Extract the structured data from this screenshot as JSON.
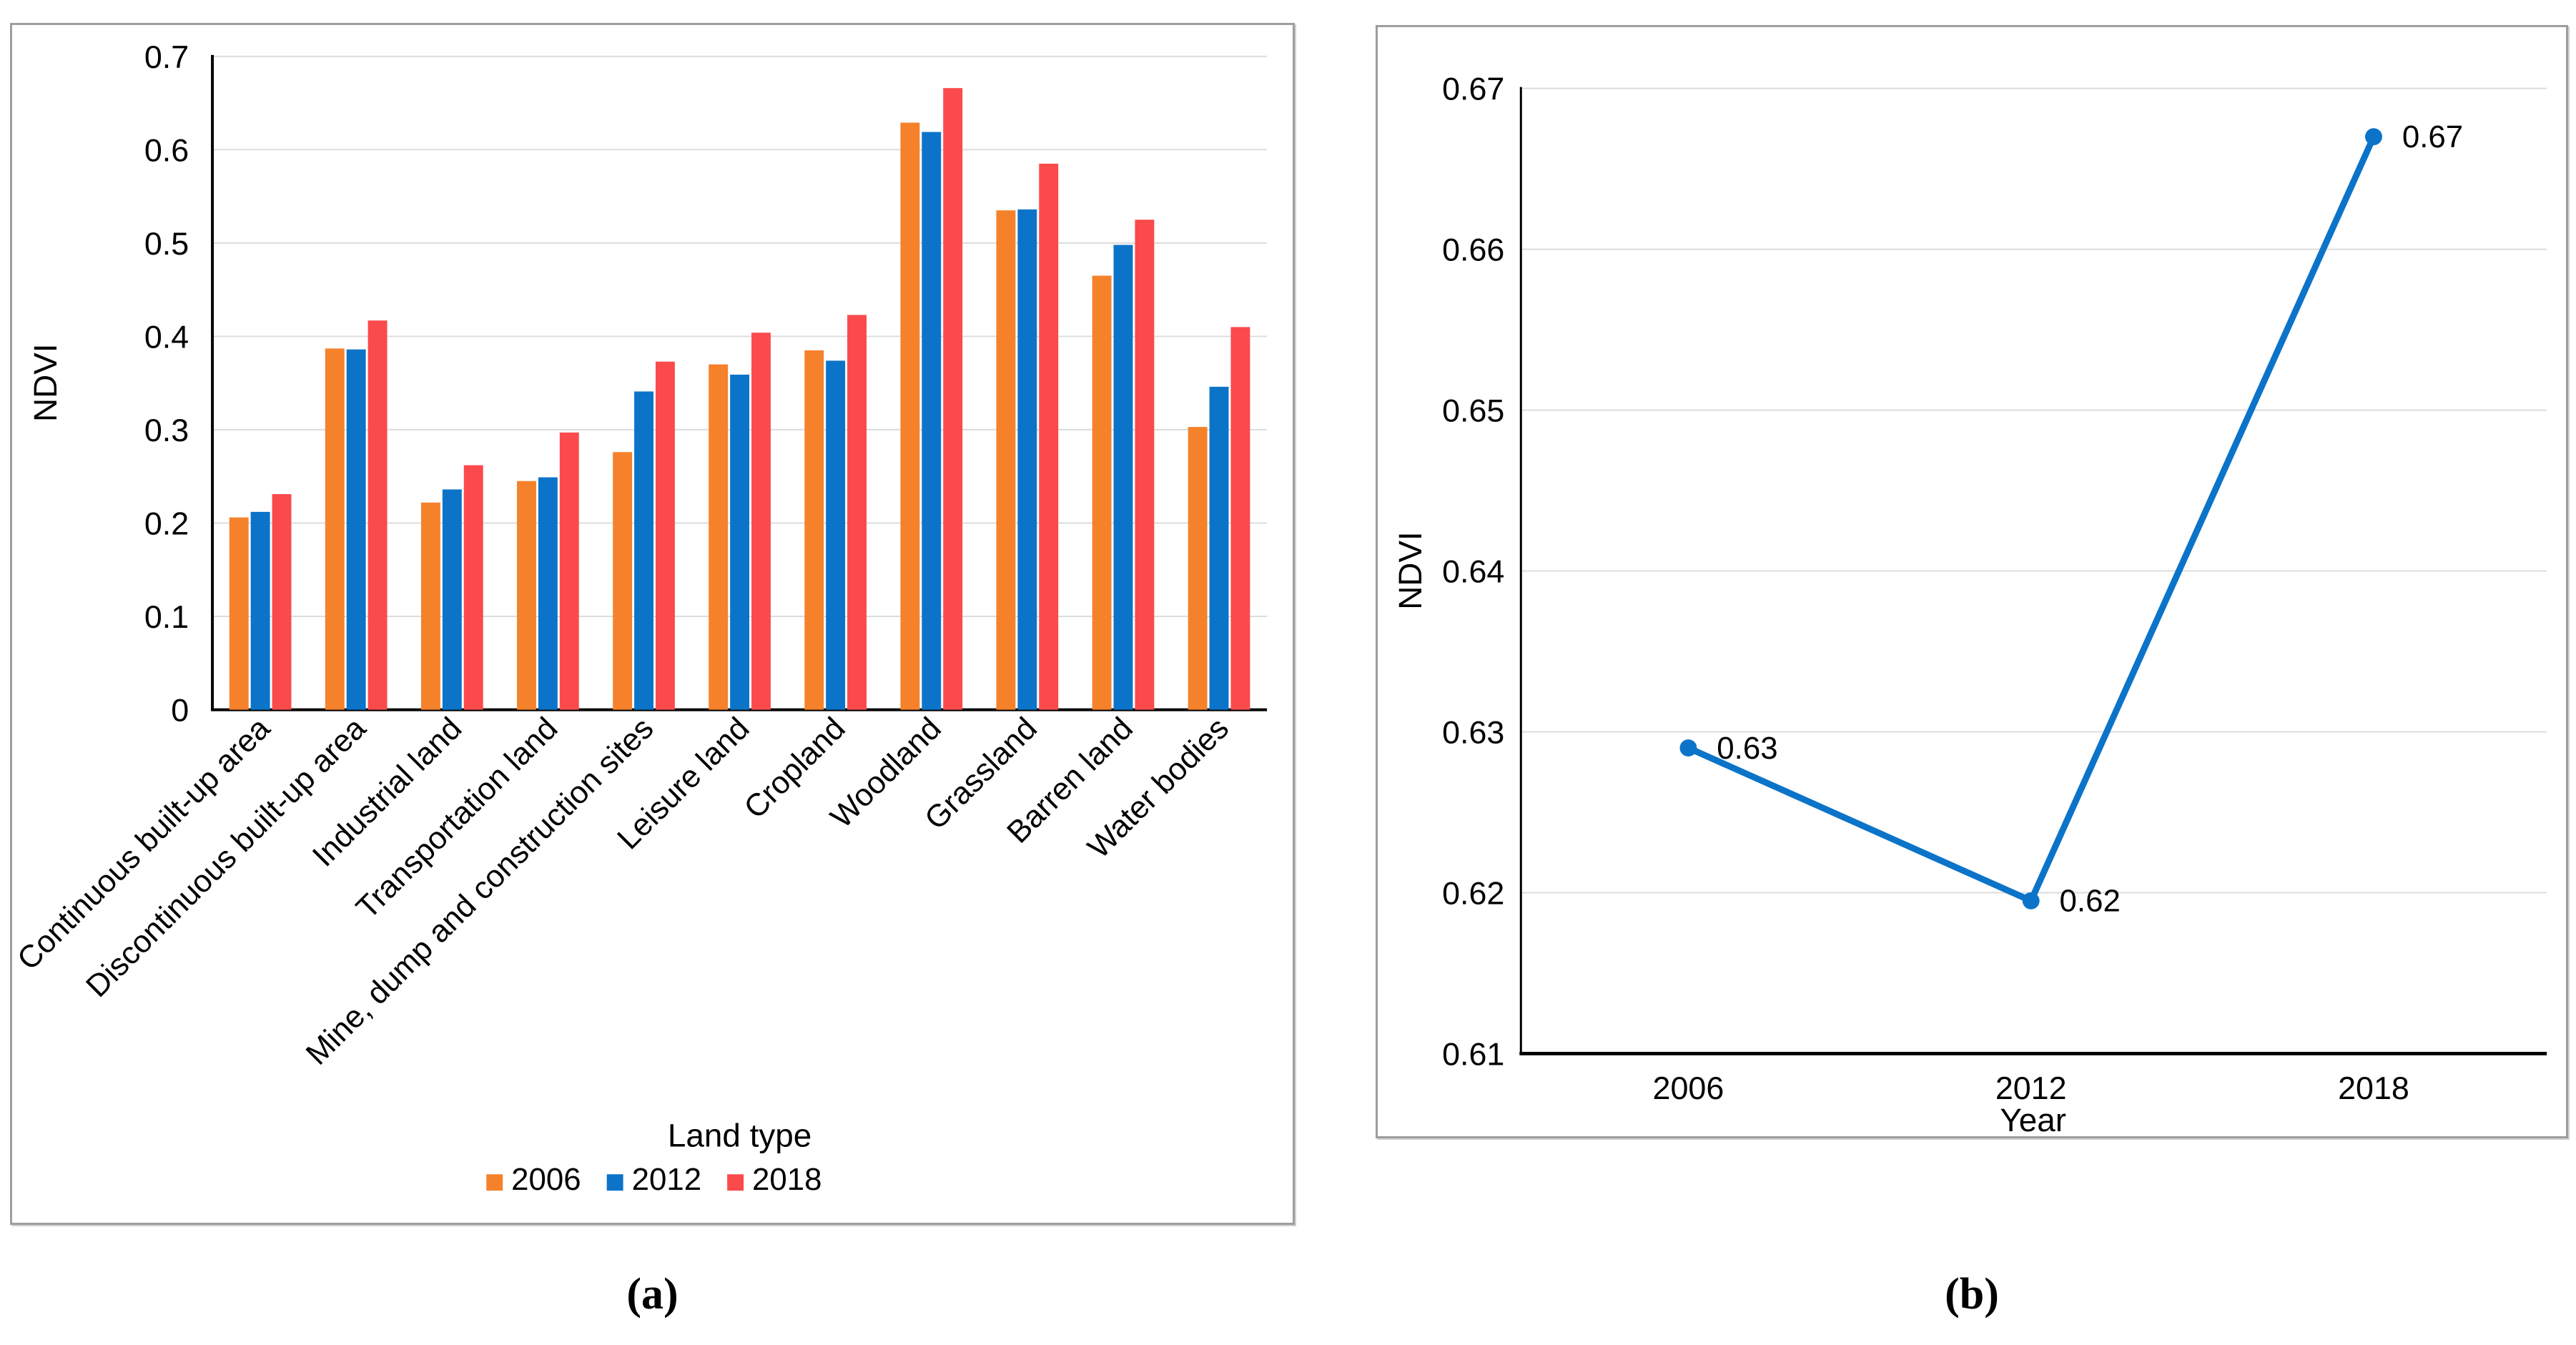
{
  "captions": {
    "a": "(a)",
    "b": "(b)"
  },
  "colors": {
    "series": {
      "2006": "#F5822B",
      "2012": "#0B74C9",
      "2018": "#FB4A4C"
    },
    "line": "#0B74C9",
    "gridline": "#DCDCDC",
    "axis": "#000000",
    "panel_border": "#9E9E9E",
    "text": "#000000"
  },
  "chart_data": [
    {
      "type": "bar",
      "panel": "a",
      "title": "",
      "xlabel": "Land type",
      "ylabel": "NDVI",
      "ylim": [
        0,
        0.7
      ],
      "grid": true,
      "ytick_values": [
        0,
        0.1,
        0.2,
        0.3,
        0.4,
        0.5,
        0.6,
        0.7
      ],
      "ytick_labels": [
        "0",
        "0.1",
        "0.2",
        "0.3",
        "0.4",
        "0.5",
        "0.6",
        "0.7"
      ],
      "categories": [
        "Continuous built-up area",
        "Discontinuous built-up area",
        "Industrial land",
        "Transportation land",
        "Mine, dump and construction sites",
        "Leisure land",
        "Cropland",
        "Woodland",
        "Grassland",
        "Barren land",
        "Water bodies"
      ],
      "series": [
        {
          "name": "2006",
          "values": [
            0.206,
            0.387,
            0.222,
            0.245,
            0.276,
            0.37,
            0.385,
            0.629,
            0.535,
            0.465,
            0.303
          ]
        },
        {
          "name": "2012",
          "values": [
            0.212,
            0.386,
            0.236,
            0.249,
            0.341,
            0.359,
            0.374,
            0.619,
            0.536,
            0.498,
            0.346
          ]
        },
        {
          "name": "2018",
          "values": [
            0.231,
            0.417,
            0.262,
            0.297,
            0.373,
            0.404,
            0.423,
            0.666,
            0.585,
            0.525,
            0.41
          ]
        }
      ],
      "legend": {
        "items": [
          "2006",
          "2012",
          "2018"
        ],
        "position": "bottom"
      }
    },
    {
      "type": "line",
      "panel": "b",
      "title": "",
      "xlabel": "Year",
      "ylabel": "NDVI",
      "ylim": [
        0.61,
        0.67
      ],
      "grid": true,
      "ytick_values": [
        0.61,
        0.62,
        0.63,
        0.64,
        0.65,
        0.66,
        0.67
      ],
      "ytick_labels": [
        "0.61",
        "0.62",
        "0.63",
        "0.64",
        "0.65",
        "0.66",
        "0.67"
      ],
      "x": [
        "2006",
        "2012",
        "2018"
      ],
      "series": [
        {
          "name": "NDVI",
          "values": [
            0.629,
            0.6195,
            0.667
          ],
          "point_labels": [
            "0.63",
            "0.62",
            "0.67"
          ]
        }
      ],
      "legend_position": "none"
    }
  ]
}
